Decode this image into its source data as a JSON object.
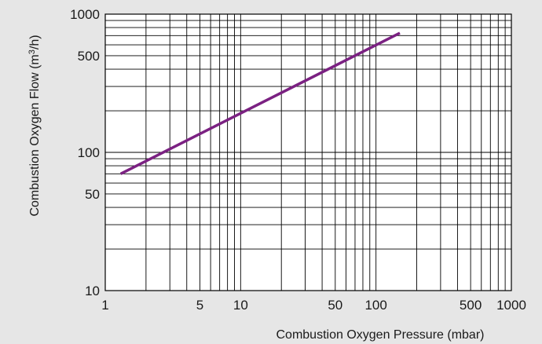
{
  "chart_data": {
    "type": "line",
    "xlabel": "Combustion Oxygen Pressure (mbar)",
    "ylabel_main": "Combustion Oxygen Flow (m",
    "ylabel_sup": "3",
    "ylabel_end": "/h)",
    "xscale": "log",
    "yscale": "log",
    "xlim": [
      1,
      1000
    ],
    "ylim": [
      10,
      1000
    ],
    "grid": true,
    "xticks": [
      {
        "v": 1,
        "label": "1"
      },
      {
        "v": 5,
        "label": "5"
      },
      {
        "v": 10,
        "label": "10"
      },
      {
        "v": 50,
        "label": "50"
      },
      {
        "v": 100,
        "label": "100"
      },
      {
        "v": 500,
        "label": "500"
      },
      {
        "v": 1000,
        "label": "1000"
      }
    ],
    "yticks": [
      {
        "v": 10,
        "label": "10"
      },
      {
        "v": 50,
        "label": "50"
      },
      {
        "v": 100,
        "label": "100"
      },
      {
        "v": 500,
        "label": "500"
      },
      {
        "v": 1000,
        "label": "1000"
      }
    ],
    "series": [
      {
        "color": "#7b2182",
        "x": [
          1.3,
          150
        ],
        "y": [
          70,
          730
        ]
      }
    ]
  }
}
